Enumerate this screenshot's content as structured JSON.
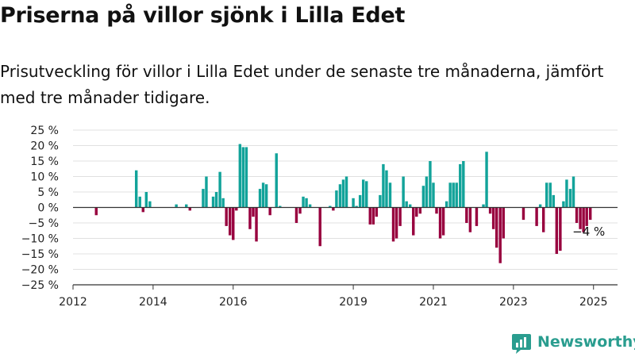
{
  "title": "Priserna på villor sjönk i Lilla Edet",
  "subtitle": "Prisutveckling för villor i Lilla Edet under de senaste tre månaderna, jämfört med tre månader tidigare.",
  "brand": {
    "name": "Newsworthy",
    "logo_icon": "bar-chart-logo-icon",
    "color": "#2a9d8f"
  },
  "colors": {
    "positive": "#12a39a",
    "negative": "#98003e",
    "grid": "#e0e0e0",
    "axis": "#333333"
  },
  "chart_data": {
    "type": "bar",
    "ylim": [
      -25,
      25
    ],
    "yticks": [
      25,
      20,
      15,
      10,
      5,
      0,
      -5,
      -10,
      -15,
      -20,
      -25
    ],
    "ytick_labels": [
      "25 %",
      "20 %",
      "15 %",
      "10 %",
      "5 %",
      "0 %",
      "−5 %",
      "−10 %",
      "−15 %",
      "−20 %",
      "−25 %"
    ],
    "x_ticks": [
      {
        "x": 2012.0,
        "label": "2012"
      },
      {
        "x": 2014.0,
        "label": "2014"
      },
      {
        "x": 2016.0,
        "label": "2016"
      },
      {
        "x": 2019.0,
        "label": "2019"
      },
      {
        "x": 2021.0,
        "label": "2021"
      },
      {
        "x": 2023.0,
        "label": "2023"
      },
      {
        "x": 2025.0,
        "label": "2025"
      }
    ],
    "grid": true,
    "bar_width_years": 0.068,
    "annotation": {
      "text": "−4 %",
      "x": 2024.92,
      "y": -4
    },
    "x_step_years": 0.0833,
    "x": [
      2012.58,
      2013.58,
      2013.67,
      2013.75,
      2013.83,
      2013.92,
      2014.58,
      2014.83,
      2014.92,
      2015.25,
      2015.33,
      2015.5,
      2015.58,
      2015.67,
      2015.75,
      2015.83,
      2015.92,
      2016.0,
      2016.08,
      2016.17,
      2016.25,
      2016.33,
      2016.42,
      2016.5,
      2016.58,
      2016.67,
      2016.75,
      2016.83,
      2016.92,
      2017.08,
      2017.17,
      2017.58,
      2017.67,
      2017.75,
      2017.83,
      2017.92,
      2018.17,
      2018.42,
      2018.5,
      2018.58,
      2018.67,
      2018.75,
      2018.83,
      2019.0,
      2019.08,
      2019.17,
      2019.25,
      2019.33,
      2019.42,
      2019.5,
      2019.58,
      2019.67,
      2019.75,
      2019.83,
      2019.92,
      2020.0,
      2020.08,
      2020.17,
      2020.25,
      2020.33,
      2020.42,
      2020.5,
      2020.58,
      2020.67,
      2020.75,
      2020.83,
      2020.92,
      2021.0,
      2021.08,
      2021.17,
      2021.25,
      2021.33,
      2021.42,
      2021.5,
      2021.58,
      2021.67,
      2021.75,
      2021.83,
      2021.92,
      2022.08,
      2022.25,
      2022.33,
      2022.42,
      2022.5,
      2022.58,
      2022.67,
      2022.75,
      2023.25,
      2023.58,
      2023.67,
      2023.75,
      2023.83,
      2023.92,
      2024.0,
      2024.08,
      2024.17,
      2024.25,
      2024.33,
      2024.42,
      2024.5,
      2024.58,
      2024.67,
      2024.75,
      2024.83,
      2024.92
    ],
    "values": [
      -2.5,
      12,
      3.5,
      -1.5,
      5,
      2,
      1,
      1,
      -1,
      6,
      10,
      3.5,
      5,
      11.5,
      3,
      -6,
      -9,
      -10.5,
      -1,
      20.5,
      19.5,
      19.5,
      -7,
      -3,
      -11,
      6,
      8,
      7.5,
      -2.5,
      17.5,
      0.5,
      -5,
      -2,
      3.5,
      3,
      1,
      -12.5,
      0.5,
      -1,
      5.5,
      7.5,
      9,
      10,
      3,
      0.5,
      4,
      9,
      8.5,
      -5.5,
      -5.5,
      -3,
      4,
      14,
      12,
      8,
      -11,
      -10,
      -6,
      10,
      2,
      1,
      -9,
      -3,
      -2,
      7,
      10,
      15,
      8,
      -2,
      -10,
      -9,
      2,
      8,
      8,
      8,
      14,
      15,
      -5,
      -8,
      -6,
      1,
      18,
      -2,
      -7,
      -13,
      -18,
      -10,
      -4,
      -6,
      1,
      -8,
      8,
      8,
      4,
      -15,
      -14,
      2,
      9,
      6,
      10,
      -5,
      -7,
      -8,
      -6,
      -4
    ]
  }
}
